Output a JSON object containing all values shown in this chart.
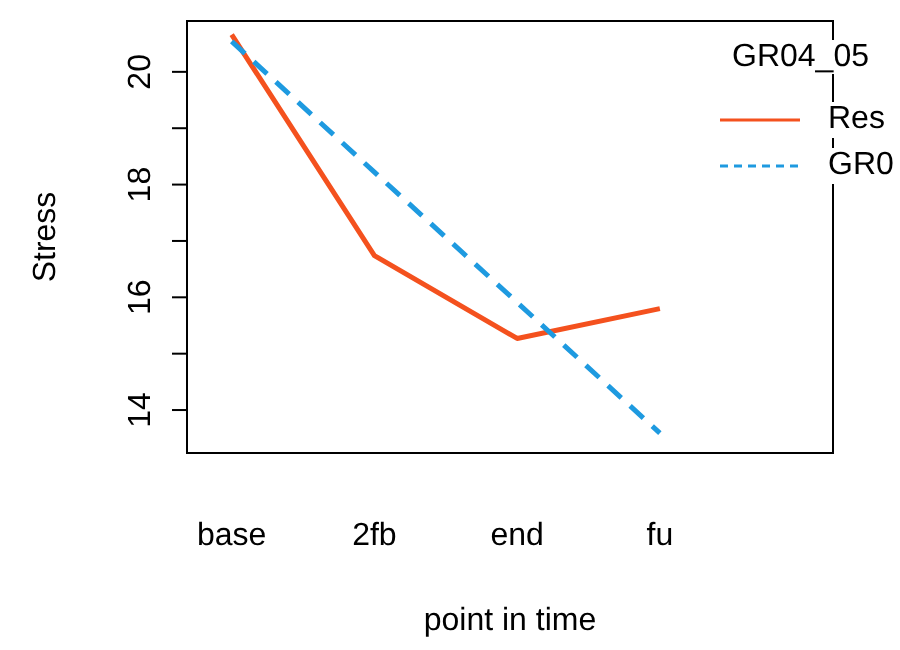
{
  "chart_data": {
    "type": "line",
    "ylabel": "Stress",
    "xlabel": "point in time",
    "legend_title": "GR04_05",
    "categories": [
      "base",
      "2fb",
      "end",
      "fu"
    ],
    "series": [
      {
        "name": "Res",
        "color": "#f4511e",
        "line_style": "solid",
        "values": [
          20.66,
          16.74,
          15.27,
          15.8
        ]
      },
      {
        "name": "GR0",
        "color": "#1e9ae0",
        "line_style": "dashed",
        "values": [
          20.54,
          18.22,
          15.91,
          13.59
        ]
      }
    ],
    "ylim": [
      13.22,
      20.92
    ],
    "yticks": [
      {
        "value": 14,
        "label": "14"
      },
      {
        "value": 15,
        "label": null
      },
      {
        "value": 16,
        "label": "16"
      },
      {
        "value": 17,
        "label": null
      },
      {
        "value": 18,
        "label": "18"
      },
      {
        "value": 19,
        "label": null
      },
      {
        "value": 20,
        "label": "20"
      }
    ],
    "legend": "top right",
    "marker": "none"
  }
}
